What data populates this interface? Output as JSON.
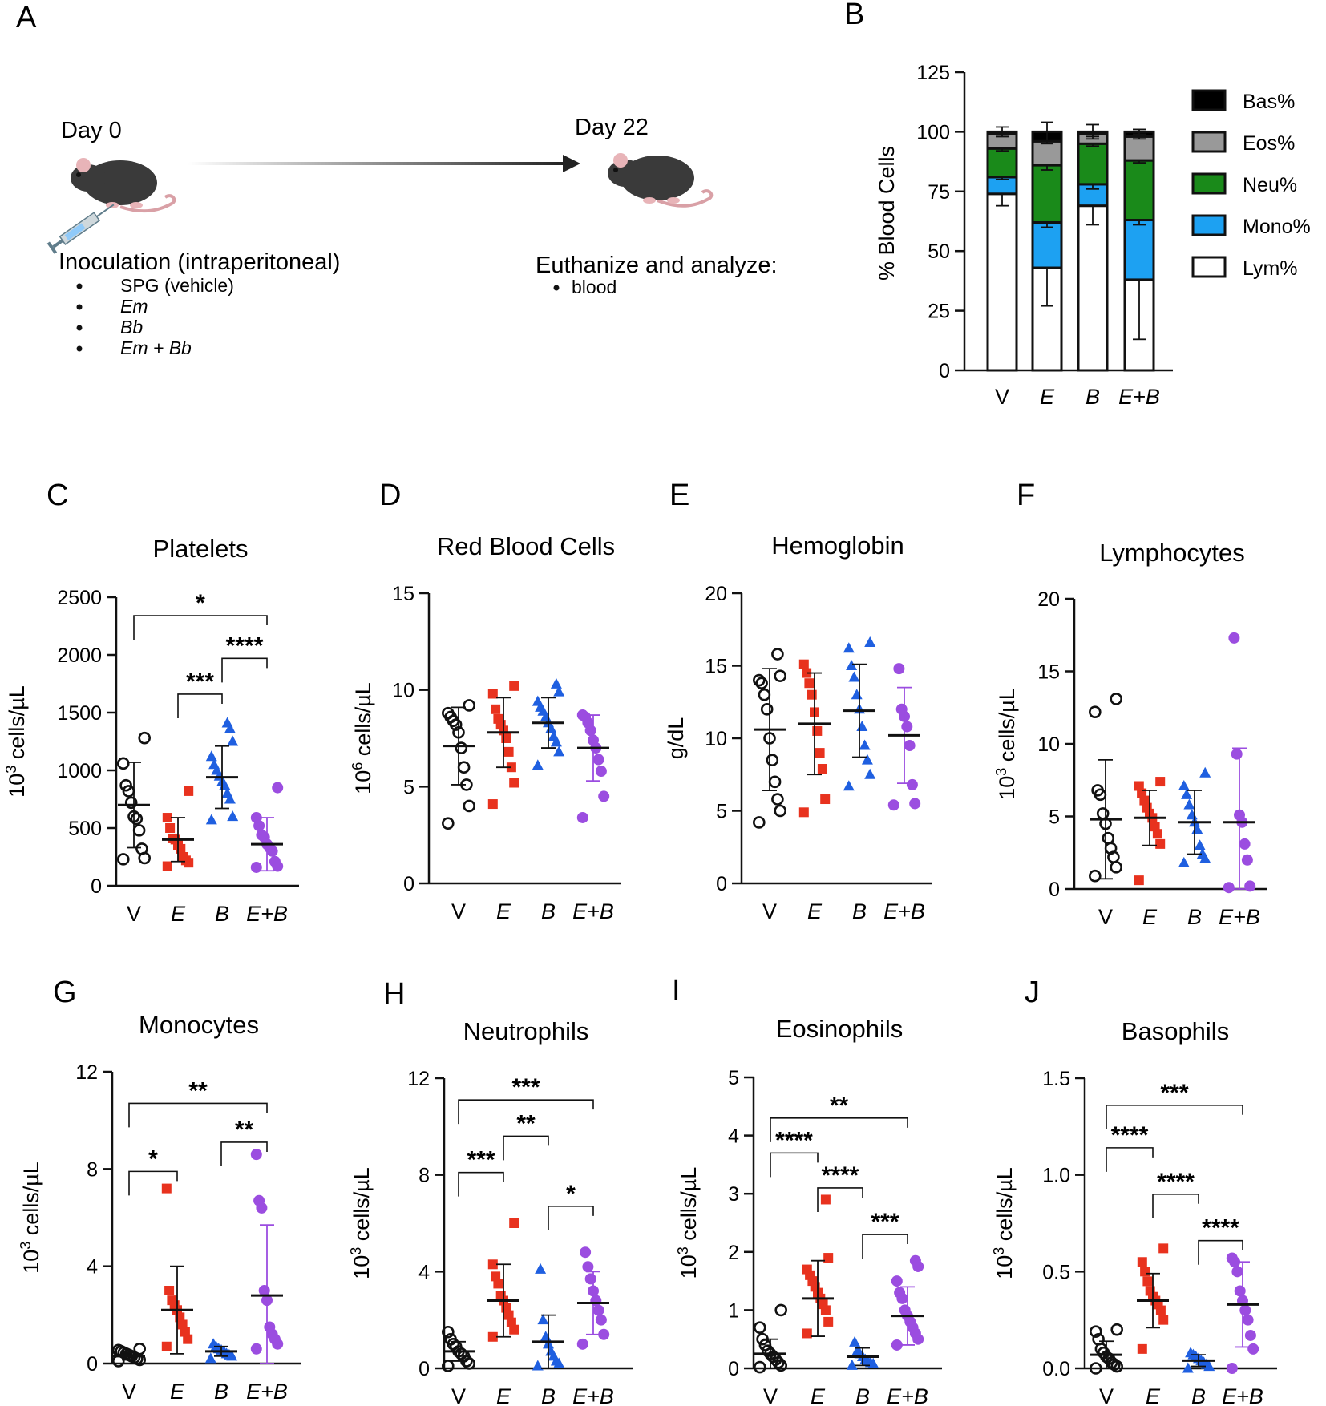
{
  "panel_letters": [
    "A",
    "B",
    "C",
    "D",
    "E",
    "F",
    "G",
    "H",
    "I",
    "J"
  ],
  "schematic": {
    "day0": "Day 0",
    "day22": "Day 22",
    "inoculation_title": "Inoculation (intraperitoneal)",
    "inoculation_items": [
      "SPG (vehicle)",
      "Em",
      "Bb",
      "Em + Bb"
    ],
    "inoculation_italic": [
      false,
      true,
      true,
      true
    ],
    "analyze_title": "Euthanize and analyze:",
    "analyze_items": [
      "blood"
    ],
    "colors": {
      "mouse": "#3a3a3a",
      "ear": "#e8b4b8",
      "tail": "#d9a0a6",
      "arrow": "#222222"
    }
  },
  "colors": {
    "V": "#111111",
    "E": "#e8321e",
    "B": "#1f5fe0",
    "EB": "#9b4de0",
    "Bas": "#000000",
    "Eos": "#999999",
    "Neu": "#1a8a1a",
    "Mono": "#1da1f2",
    "Lym": "#ffffff"
  },
  "chart_data": [
    {
      "id": "B",
      "type": "bar",
      "stacked": true,
      "title": "",
      "ylabel": "% Blood Cells",
      "ylim": [
        0,
        125
      ],
      "yticks": [
        "0",
        "25",
        "50",
        "75",
        "100",
        "125"
      ],
      "categories": [
        "V",
        "E",
        "B",
        "E+B"
      ],
      "category_italic": [
        false,
        true,
        true,
        true
      ],
      "legend": [
        "Bas%",
        "Eos%",
        "Neu%",
        "Mono%",
        "Lym%"
      ],
      "legend_position": "right",
      "series": [
        {
          "name": "Lym%",
          "values": [
            74,
            43,
            69,
            38
          ],
          "errors": [
            5,
            16,
            8,
            25
          ]
        },
        {
          "name": "Mono%",
          "values": [
            7,
            19,
            9,
            25
          ],
          "errors": [
            1,
            2,
            2,
            2
          ]
        },
        {
          "name": "Neu%",
          "values": [
            12,
            24,
            17,
            25
          ],
          "errors": [
            1,
            2,
            1,
            1
          ]
        },
        {
          "name": "Eos%",
          "values": [
            6,
            10,
            4,
            10
          ],
          "errors": [
            1,
            1,
            1,
            1
          ]
        },
        {
          "name": "Bas%",
          "values": [
            1,
            4,
            1,
            2
          ],
          "errors": [
            2,
            4,
            3,
            1
          ]
        }
      ]
    },
    {
      "id": "C",
      "type": "scatter",
      "title": "Platelets",
      "ylabel": "10^3 cells/µL",
      "ylabel_base": "10",
      "ylabel_exp": "3",
      "ylabel_rest": " cells/µL",
      "ylim": [
        0,
        2500
      ],
      "yticks": [
        "0",
        "500",
        "1000",
        "1500",
        "2000",
        "2500"
      ],
      "categories": [
        "V",
        "E",
        "B",
        "E+B"
      ],
      "category_italic": [
        false,
        true,
        true,
        true
      ],
      "groups": [
        {
          "points": [
            230,
            240,
            320,
            480,
            580,
            600,
            720,
            820,
            870,
            1060,
            1280
          ],
          "mean": 700,
          "sd": 370
        },
        {
          "points": [
            170,
            200,
            220,
            250,
            320,
            350,
            400,
            410,
            500,
            590,
            820
          ],
          "mean": 400,
          "sd": 190
        },
        {
          "points": [
            570,
            600,
            750,
            800,
            870,
            900,
            950,
            1000,
            1050,
            1120,
            1250,
            1360,
            1410
          ],
          "mean": 940,
          "sd": 270
        },
        {
          "points": [
            160,
            170,
            210,
            300,
            330,
            360,
            420,
            440,
            520,
            590,
            850
          ],
          "mean": 360,
          "sd": 230
        }
      ],
      "significance": [
        {
          "from": 0,
          "to": 3,
          "label": "*",
          "y": 2340
        },
        {
          "from": 2,
          "to": 3,
          "label": "****",
          "y": 1970
        },
        {
          "from": 1,
          "to": 2,
          "label": "***",
          "y": 1660
        }
      ]
    },
    {
      "id": "D",
      "type": "scatter",
      "title": "Red Blood Cells",
      "ylabel": "10^6 cells/µL",
      "ylabel_base": "10",
      "ylabel_exp": "6",
      "ylabel_rest": " cells/µL",
      "ylim": [
        0,
        15
      ],
      "yticks": [
        "0",
        "5",
        "10",
        "15"
      ],
      "categories": [
        "V",
        "E",
        "B",
        "E+B"
      ],
      "category_italic": [
        false,
        true,
        true,
        true
      ],
      "groups": [
        {
          "points": [
            3.1,
            4.0,
            5.1,
            6.0,
            7.0,
            7.8,
            8.2,
            8.4,
            8.6,
            8.8,
            9.2
          ],
          "mean": 7.1,
          "sd": 2.0
        },
        {
          "points": [
            4.1,
            5.2,
            6.0,
            6.8,
            7.5,
            7.9,
            8.2,
            8.5,
            9.0,
            9.8,
            10.2
          ],
          "mean": 7.8,
          "sd": 1.8
        },
        {
          "points": [
            6.1,
            6.8,
            7.3,
            7.6,
            8.0,
            8.3,
            8.6,
            8.9,
            9.1,
            9.4,
            9.9,
            10.3
          ],
          "mean": 8.3,
          "sd": 1.3
        },
        {
          "points": [
            3.4,
            4.5,
            5.8,
            6.4,
            7.0,
            7.4,
            7.9,
            8.3,
            8.6,
            8.7
          ],
          "mean": 7.0,
          "sd": 1.7
        }
      ],
      "significance": []
    },
    {
      "id": "E",
      "type": "scatter",
      "title": "Hemoglobin",
      "ylabel": "g/dL",
      "ylabel_base": "",
      "ylabel_exp": "",
      "ylabel_rest": "g/dL",
      "ylim": [
        0,
        20
      ],
      "yticks": [
        "0",
        "5",
        "10",
        "15",
        "20"
      ],
      "categories": [
        "V",
        "E",
        "B",
        "E+B"
      ],
      "category_italic": [
        false,
        true,
        true,
        true
      ],
      "groups": [
        {
          "points": [
            4.2,
            5.0,
            5.8,
            7.0,
            8.5,
            10.0,
            12.0,
            13.0,
            13.8,
            14.0,
            14.3,
            15.8
          ],
          "mean": 10.6,
          "sd": 4.2
        },
        {
          "points": [
            4.9,
            5.8,
            7.9,
            9.0,
            10.5,
            11.8,
            13.0,
            13.8,
            14.5,
            15.1
          ],
          "mean": 11.0,
          "sd": 3.5
        },
        {
          "points": [
            6.7,
            7.5,
            8.5,
            9.5,
            10.8,
            12.0,
            13.0,
            14.2,
            15.0,
            16.2,
            16.6
          ],
          "mean": 11.9,
          "sd": 3.2
        },
        {
          "points": [
            5.4,
            5.5,
            6.8,
            9.5,
            10.8,
            11.5,
            12.0,
            14.8
          ],
          "mean": 10.2,
          "sd": 3.3
        }
      ],
      "significance": []
    },
    {
      "id": "F",
      "type": "scatter",
      "title": "Lymphocytes",
      "ylabel": "10^3 cells/µL",
      "ylabel_base": "10",
      "ylabel_exp": "3",
      "ylabel_rest": " cells/µL",
      "ylim": [
        0,
        20
      ],
      "yticks": [
        "0",
        "5",
        "10",
        "15",
        "20"
      ],
      "categories": [
        "V",
        "E",
        "B",
        "E+B"
      ],
      "category_italic": [
        false,
        true,
        true,
        true
      ],
      "groups": [
        {
          "points": [
            0.9,
            1.5,
            2.2,
            2.8,
            3.5,
            4.5,
            5.2,
            6.5,
            6.8,
            12.2,
            13.1
          ],
          "mean": 4.8,
          "sd": 4.1
        },
        {
          "points": [
            0.6,
            3.1,
            3.8,
            4.3,
            4.9,
            5.2,
            5.6,
            6.1,
            6.6,
            7.1,
            7.4
          ],
          "mean": 4.9,
          "sd": 1.9
        },
        {
          "points": [
            1.8,
            2.1,
            2.4,
            3.0,
            4.1,
            4.6,
            5.1,
            5.8,
            6.5,
            7.1,
            8.0
          ],
          "mean": 4.6,
          "sd": 2.2
        },
        {
          "points": [
            0.1,
            0.2,
            2.0,
            3.1,
            4.6,
            5.1,
            9.3,
            17.3
          ],
          "mean": 4.6,
          "sd": 5.1
        }
      ],
      "significance": []
    },
    {
      "id": "G",
      "type": "scatter",
      "title": "Monocytes",
      "ylabel": "10^3 cells/µL",
      "ylabel_base": "10",
      "ylabel_exp": "3",
      "ylabel_rest": " cells/µL",
      "ylim": [
        0,
        12
      ],
      "yticks": [
        "0",
        "4",
        "8",
        "12"
      ],
      "categories": [
        "V",
        "E",
        "B",
        "E+B"
      ],
      "category_italic": [
        false,
        true,
        true,
        true
      ],
      "groups": [
        {
          "points": [
            0.1,
            0.15,
            0.2,
            0.25,
            0.3,
            0.35,
            0.4,
            0.45,
            0.5,
            0.55,
            0.6
          ],
          "mean": 0.3,
          "sd": 0.15
        },
        {
          "points": [
            0.7,
            1.0,
            1.3,
            1.6,
            1.9,
            2.2,
            2.4,
            2.6,
            3.0,
            7.2
          ],
          "mean": 2.2,
          "sd": 1.8
        },
        {
          "points": [
            0.2,
            0.3,
            0.35,
            0.4,
            0.5,
            0.55,
            0.6,
            0.7,
            0.8
          ],
          "mean": 0.5,
          "sd": 0.2
        },
        {
          "points": [
            0.6,
            0.8,
            1.0,
            1.2,
            1.5,
            2.6,
            3.0,
            6.4,
            6.7,
            8.6
          ],
          "mean": 2.8,
          "sd": 2.9
        }
      ],
      "significance": [
        {
          "from": 0,
          "to": 3,
          "label": "**",
          "y": 10.7
        },
        {
          "from": 2,
          "to": 3,
          "label": "**",
          "y": 9.1
        },
        {
          "from": 0,
          "to": 1,
          "label": "*",
          "y": 7.9
        }
      ]
    },
    {
      "id": "H",
      "type": "scatter",
      "title": "Neutrophils",
      "ylabel": "10^3 cells/µL",
      "ylabel_base": "10",
      "ylabel_exp": "3",
      "ylabel_rest": " cells/µL",
      "ylim": [
        0,
        12
      ],
      "yticks": [
        "0",
        "4",
        "8",
        "12"
      ],
      "categories": [
        "V",
        "E",
        "B",
        "E+B"
      ],
      "category_italic": [
        false,
        true,
        true,
        true
      ],
      "groups": [
        {
          "points": [
            0.1,
            0.2,
            0.3,
            0.5,
            0.6,
            0.7,
            0.9,
            1.0,
            1.2,
            1.5
          ],
          "mean": 0.7,
          "sd": 0.4
        },
        {
          "points": [
            1.3,
            1.6,
            1.9,
            2.2,
            2.5,
            2.8,
            3.0,
            3.5,
            3.8,
            4.3,
            6.0
          ],
          "mean": 2.8,
          "sd": 1.5
        },
        {
          "points": [
            0.1,
            0.2,
            0.3,
            0.5,
            0.7,
            1.0,
            1.3,
            2.0,
            4.1
          ],
          "mean": 1.1,
          "sd": 1.1
        },
        {
          "points": [
            1.0,
            1.4,
            2.0,
            2.4,
            2.8,
            3.2,
            3.7,
            4.2,
            4.8
          ],
          "mean": 2.7,
          "sd": 1.3
        }
      ],
      "significance": [
        {
          "from": 0,
          "to": 3,
          "label": "***",
          "y": 11.1
        },
        {
          "from": 1,
          "to": 2,
          "label": "**",
          "y": 9.6
        },
        {
          "from": 0,
          "to": 1,
          "label": "***",
          "y": 8.1
        },
        {
          "from": 2,
          "to": 3,
          "label": "*",
          "y": 6.7
        }
      ]
    },
    {
      "id": "I",
      "type": "scatter",
      "title": "Eosinophils",
      "ylabel": "10^3 cells/µL",
      "ylabel_base": "10",
      "ylabel_exp": "3",
      "ylabel_rest": " cells/µL",
      "ylim": [
        0,
        5
      ],
      "yticks": [
        "0",
        "1",
        "2",
        "3",
        "4",
        "5"
      ],
      "categories": [
        "V",
        "E",
        "B",
        "E+B"
      ],
      "category_italic": [
        false,
        true,
        true,
        true
      ],
      "groups": [
        {
          "points": [
            0.02,
            0.05,
            0.1,
            0.15,
            0.2,
            0.25,
            0.3,
            0.4,
            0.5,
            0.7,
            1.0
          ],
          "mean": 0.25,
          "sd": 0.25
        },
        {
          "points": [
            0.6,
            0.8,
            1.0,
            1.1,
            1.2,
            1.3,
            1.4,
            1.5,
            1.6,
            1.7,
            1.9,
            2.9
          ],
          "mean": 1.2,
          "sd": 0.65
        },
        {
          "points": [
            0.05,
            0.08,
            0.1,
            0.12,
            0.15,
            0.2,
            0.25,
            0.3,
            0.45
          ],
          "mean": 0.2,
          "sd": 0.15
        },
        {
          "points": [
            0.4,
            0.5,
            0.6,
            0.7,
            0.8,
            0.9,
            1.0,
            1.2,
            1.3,
            1.5,
            1.75,
            1.85
          ],
          "mean": 0.9,
          "sd": 0.5
        }
      ],
      "significance": [
        {
          "from": 0,
          "to": 3,
          "label": "**",
          "y": 4.3
        },
        {
          "from": 0,
          "to": 1,
          "label": "****",
          "y": 3.7
        },
        {
          "from": 1,
          "to": 2,
          "label": "****",
          "y": 3.1
        },
        {
          "from": 2,
          "to": 3,
          "label": "***",
          "y": 2.3
        }
      ]
    },
    {
      "id": "J",
      "type": "scatter",
      "title": "Basophils",
      "ylabel": "10^3 cells/µL",
      "ylabel_base": "10",
      "ylabel_exp": "3",
      "ylabel_rest": " cells/µL",
      "ylim": [
        0,
        1.5
      ],
      "yticks": [
        "0.0",
        "0.5",
        "1.0",
        "1.5"
      ],
      "categories": [
        "V",
        "E",
        "B",
        "E+B"
      ],
      "category_italic": [
        false,
        true,
        true,
        true
      ],
      "groups": [
        {
          "points": [
            0.0,
            0.01,
            0.02,
            0.03,
            0.05,
            0.06,
            0.08,
            0.1,
            0.15,
            0.19,
            0.2
          ],
          "mean": 0.07,
          "sd": 0.07
        },
        {
          "points": [
            0.1,
            0.25,
            0.3,
            0.33,
            0.35,
            0.37,
            0.4,
            0.45,
            0.5,
            0.55,
            0.62
          ],
          "mean": 0.35,
          "sd": 0.14
        },
        {
          "points": [
            0.0,
            0.01,
            0.02,
            0.03,
            0.04,
            0.05,
            0.06,
            0.07,
            0.08
          ],
          "mean": 0.04,
          "sd": 0.03
        },
        {
          "points": [
            0.0,
            0.1,
            0.17,
            0.25,
            0.3,
            0.35,
            0.4,
            0.5,
            0.55,
            0.57
          ],
          "mean": 0.33,
          "sd": 0.22
        }
      ],
      "significance": [
        {
          "from": 0,
          "to": 3,
          "label": "***",
          "y": 1.36
        },
        {
          "from": 0,
          "to": 1,
          "label": "****",
          "y": 1.14
        },
        {
          "from": 1,
          "to": 2,
          "label": "****",
          "y": 0.9
        },
        {
          "from": 2,
          "to": 3,
          "label": "****",
          "y": 0.66
        }
      ]
    }
  ]
}
